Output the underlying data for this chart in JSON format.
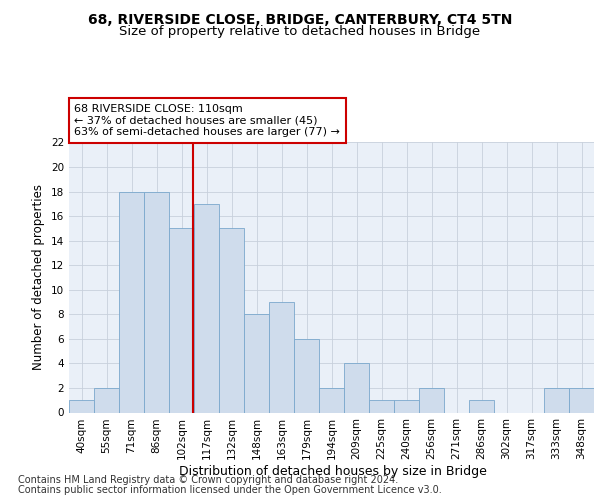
{
  "title1": "68, RIVERSIDE CLOSE, BRIDGE, CANTERBURY, CT4 5TN",
  "title2": "Size of property relative to detached houses in Bridge",
  "xlabel": "Distribution of detached houses by size in Bridge",
  "ylabel": "Number of detached properties",
  "categories": [
    "40sqm",
    "55sqm",
    "71sqm",
    "86sqm",
    "102sqm",
    "117sqm",
    "132sqm",
    "148sqm",
    "163sqm",
    "179sqm",
    "194sqm",
    "209sqm",
    "225sqm",
    "240sqm",
    "256sqm",
    "271sqm",
    "286sqm",
    "302sqm",
    "317sqm",
    "333sqm",
    "348sqm"
  ],
  "values": [
    1,
    2,
    18,
    18,
    15,
    17,
    15,
    8,
    9,
    6,
    2,
    4,
    1,
    1,
    2,
    0,
    1,
    0,
    0,
    2,
    2
  ],
  "bar_color": "#cfdcec",
  "bar_edge_color": "#7aa8cc",
  "annotation_line_label": "68 RIVERSIDE CLOSE: 110sqm",
  "annotation_text1": "← 37% of detached houses are smaller (45)",
  "annotation_text2": "63% of semi-detached houses are larger (77) →",
  "annotation_box_facecolor": "#ffffff",
  "annotation_box_edgecolor": "#cc0000",
  "vline_color": "#cc0000",
  "vline_x_index": 4.45,
  "ylim": [
    0,
    22
  ],
  "yticks": [
    0,
    2,
    4,
    6,
    8,
    10,
    12,
    14,
    16,
    18,
    20,
    22
  ],
  "footer1": "Contains HM Land Registry data © Crown copyright and database right 2024.",
  "footer2": "Contains public sector information licensed under the Open Government Licence v3.0.",
  "bg_color": "#ffffff",
  "plot_bg_color": "#eaf0f8",
  "grid_color": "#c8d0dc",
  "title1_fontsize": 10,
  "title2_fontsize": 9.5,
  "xlabel_fontsize": 9,
  "ylabel_fontsize": 8.5,
  "tick_fontsize": 7.5,
  "footer_fontsize": 7,
  "ann_fontsize": 8
}
